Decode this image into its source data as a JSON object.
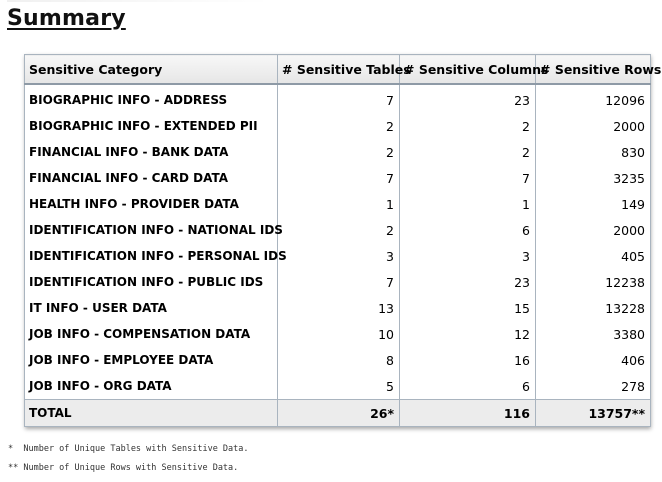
{
  "page": {
    "title": "Summary"
  },
  "table": {
    "headers": [
      "Sensitive Category",
      "# Sensitive Tables",
      "# Sensitive Columns",
      "# Sensitive Rows"
    ],
    "rows": [
      {
        "category": "BIOGRAPHIC INFO - ADDRESS",
        "tables": "7",
        "columns": "23",
        "rows": "12096"
      },
      {
        "category": "BIOGRAPHIC INFO - EXTENDED PII",
        "tables": "2",
        "columns": "2",
        "rows": "2000"
      },
      {
        "category": "FINANCIAL INFO - BANK DATA",
        "tables": "2",
        "columns": "2",
        "rows": "830"
      },
      {
        "category": "FINANCIAL INFO - CARD DATA",
        "tables": "7",
        "columns": "7",
        "rows": "3235"
      },
      {
        "category": "HEALTH INFO - PROVIDER DATA",
        "tables": "1",
        "columns": "1",
        "rows": "149"
      },
      {
        "category": "IDENTIFICATION INFO - NATIONAL IDS",
        "tables": "2",
        "columns": "6",
        "rows": "2000"
      },
      {
        "category": "IDENTIFICATION INFO - PERSONAL IDS",
        "tables": "3",
        "columns": "3",
        "rows": "405"
      },
      {
        "category": "IDENTIFICATION INFO - PUBLIC IDS",
        "tables": "7",
        "columns": "23",
        "rows": "12238"
      },
      {
        "category": "IT INFO - USER DATA",
        "tables": "13",
        "columns": "15",
        "rows": "13228"
      },
      {
        "category": "JOB INFO - COMPENSATION DATA",
        "tables": "10",
        "columns": "12",
        "rows": "3380"
      },
      {
        "category": "JOB INFO - EMPLOYEE DATA",
        "tables": "8",
        "columns": "16",
        "rows": "406"
      },
      {
        "category": "JOB INFO - ORG DATA",
        "tables": "5",
        "columns": "6",
        "rows": "278"
      }
    ],
    "total": {
      "label": "TOTAL",
      "tables": "26*",
      "columns": "116",
      "rows": "13757**"
    }
  },
  "footnotes": [
    "*  Number of Unique Tables with Sensitive Data.",
    "** Number of Unique Rows with Sensitive Data."
  ]
}
